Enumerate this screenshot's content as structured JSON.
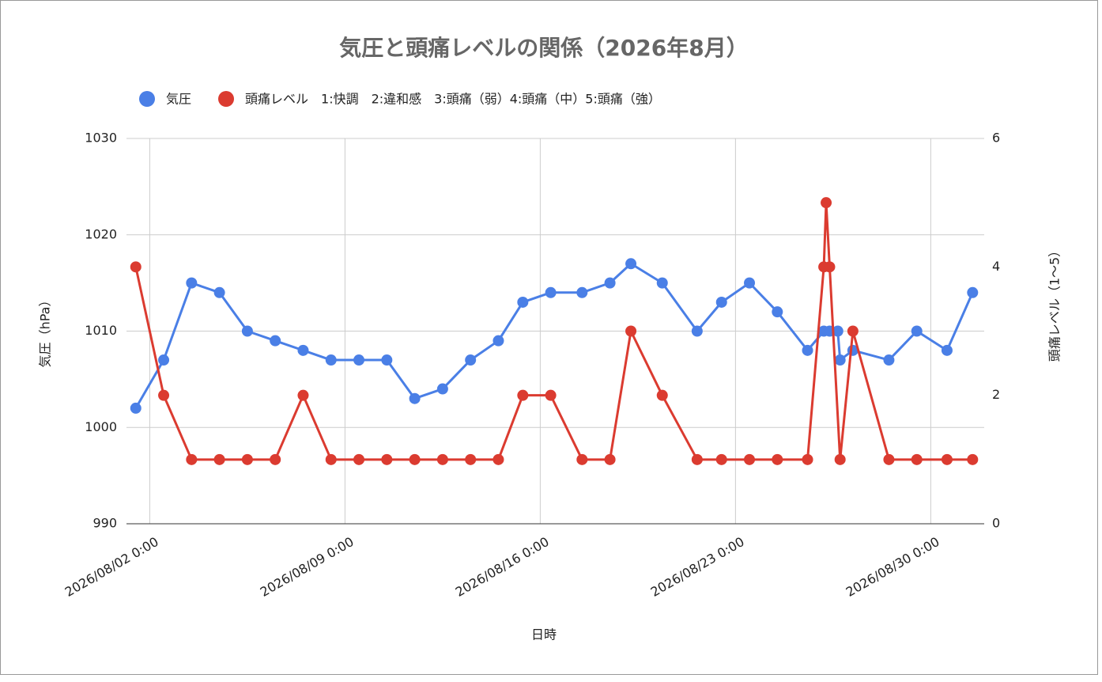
{
  "chart_data": {
    "type": "line",
    "title": "気圧と頭痛レベルの関係（2026年8月）",
    "x_label": "日時",
    "y_label": "気圧（hPa）",
    "y2_label": "頭痛レベル（1〜5）",
    "xlim": [
      "2026/08/01 4:00",
      "2026/08/31 22:00"
    ],
    "xticks": [
      "2026/08/02 0:00",
      "2026/08/09 0:00",
      "2026/08/16 0:00",
      "2026/08/23 0:00",
      "2026/08/30 0:00"
    ],
    "ylim": [
      990,
      1030
    ],
    "yticks": [
      990,
      1000,
      1010,
      1020,
      1030
    ],
    "y2lim": [
      0,
      6
    ],
    "y2ticks": [
      0,
      2,
      4,
      6
    ],
    "grid": true,
    "legend": "top",
    "series": [
      {
        "name": "気圧",
        "color": "#4a7fe6",
        "x": [
          "2026/08/01 12:00",
          "2026/08/02 12:00",
          "2026/08/03 12:00",
          "2026/08/04 12:00",
          "2026/08/05 12:00",
          "2026/08/06 12:00",
          "2026/08/07 12:00",
          "2026/08/08 12:00",
          "2026/08/09 12:00",
          "2026/08/10 12:00",
          "2026/08/11 12:00",
          "2026/08/12 12:00",
          "2026/08/13 12:00",
          "2026/08/14 12:00",
          "2026/08/15 9:00",
          "2026/08/16 9:00",
          "2026/08/17 12:00",
          "2026/08/18 12:00",
          "2026/08/19 6:00",
          "2026/08/20 9:00",
          "2026/08/21 15:00",
          "2026/08/22 12:00",
          "2026/08/23 12:00",
          "2026/08/24 12:00",
          "2026/08/25 14:00",
          "2026/08/26 4:00",
          "2026/08/26 9:00",
          "2026/08/26 16:00",
          "2026/08/26 18:00",
          "2026/08/27 5:00",
          "2026/08/28 12:00",
          "2026/08/29 12:00",
          "2026/08/30 14:00",
          "2026/08/31 12:00"
        ],
        "values": [
          1002,
          1007,
          1015,
          1014,
          1010,
          1009,
          1008,
          1007,
          1007,
          1007,
          1003,
          1004,
          1007,
          1009,
          1013,
          1014,
          1014,
          1015,
          1017,
          1015,
          1010,
          1013,
          1015,
          1012,
          1008,
          1010,
          1010,
          1010,
          1007,
          1008,
          1007,
          1010,
          1008,
          1014
        ]
      },
      {
        "name": "頭痛レベル　1:快調　2:違和感　3:頭痛（弱）4:頭痛（中）5:頭痛（強）",
        "color": "#db3b30",
        "axis": "y2",
        "x": [
          "2026/08/01 12:00",
          "2026/08/02 12:00",
          "2026/08/03 12:00",
          "2026/08/04 12:00",
          "2026/08/05 12:00",
          "2026/08/06 12:00",
          "2026/08/07 12:00",
          "2026/08/08 12:00",
          "2026/08/09 12:00",
          "2026/08/10 12:00",
          "2026/08/11 12:00",
          "2026/08/12 12:00",
          "2026/08/13 12:00",
          "2026/08/14 12:00",
          "2026/08/15 9:00",
          "2026/08/16 9:00",
          "2026/08/17 12:00",
          "2026/08/18 12:00",
          "2026/08/19 6:00",
          "2026/08/20 9:00",
          "2026/08/21 15:00",
          "2026/08/22 12:00",
          "2026/08/23 12:00",
          "2026/08/24 12:00",
          "2026/08/25 14:00",
          "2026/08/26 4:00",
          "2026/08/26 6:00",
          "2026/08/26 9:00",
          "2026/08/26 18:00",
          "2026/08/27 5:00",
          "2026/08/28 12:00",
          "2026/08/29 12:00",
          "2026/08/30 14:00",
          "2026/08/31 12:00"
        ],
        "values": [
          4,
          2,
          1,
          1,
          1,
          1,
          2,
          1,
          1,
          1,
          1,
          1,
          1,
          1,
          2,
          2,
          1,
          1,
          3,
          2,
          1,
          1,
          1,
          1,
          1,
          4,
          5,
          4,
          1,
          3,
          1,
          1,
          1,
          1
        ]
      }
    ]
  }
}
